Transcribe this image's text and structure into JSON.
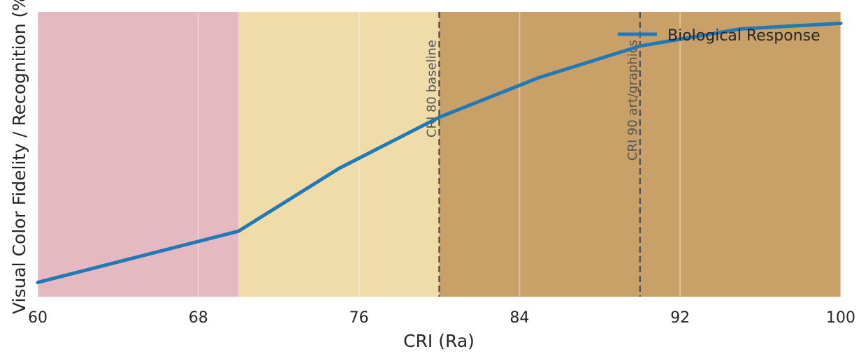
{
  "chart_data": {
    "type": "line",
    "title": "",
    "xlabel": "CRI (Ra)",
    "ylabel": "Visual Color Fidelity / Recognition (%",
    "xlim": [
      60,
      100
    ],
    "ylim": [
      0,
      100
    ],
    "x_ticks": [
      "60",
      "68",
      "76",
      "84",
      "92",
      "100"
    ],
    "grid": true,
    "legend": "top-right",
    "regions": [
      {
        "from": 60,
        "to": 70,
        "color": "#e4b9c2"
      },
      {
        "from": 70,
        "to": 80,
        "color": "#f0dca8"
      },
      {
        "from": 80,
        "to": 100,
        "color": "#c9a067"
      }
    ],
    "reference_lines": [
      {
        "x": 80,
        "label": "CRI 80 baseline",
        "color": "#555555"
      },
      {
        "x": 90,
        "label": "CRI 90 art/graphics",
        "color": "#555555"
      }
    ],
    "series": [
      {
        "name": "Biological Response",
        "color": "#2279b5",
        "x": [
          60,
          70,
          75,
          80,
          85,
          90,
          95,
          100
        ],
        "y": [
          5,
          23,
          45,
          63,
          77,
          88,
          94,
          96
        ]
      }
    ]
  }
}
